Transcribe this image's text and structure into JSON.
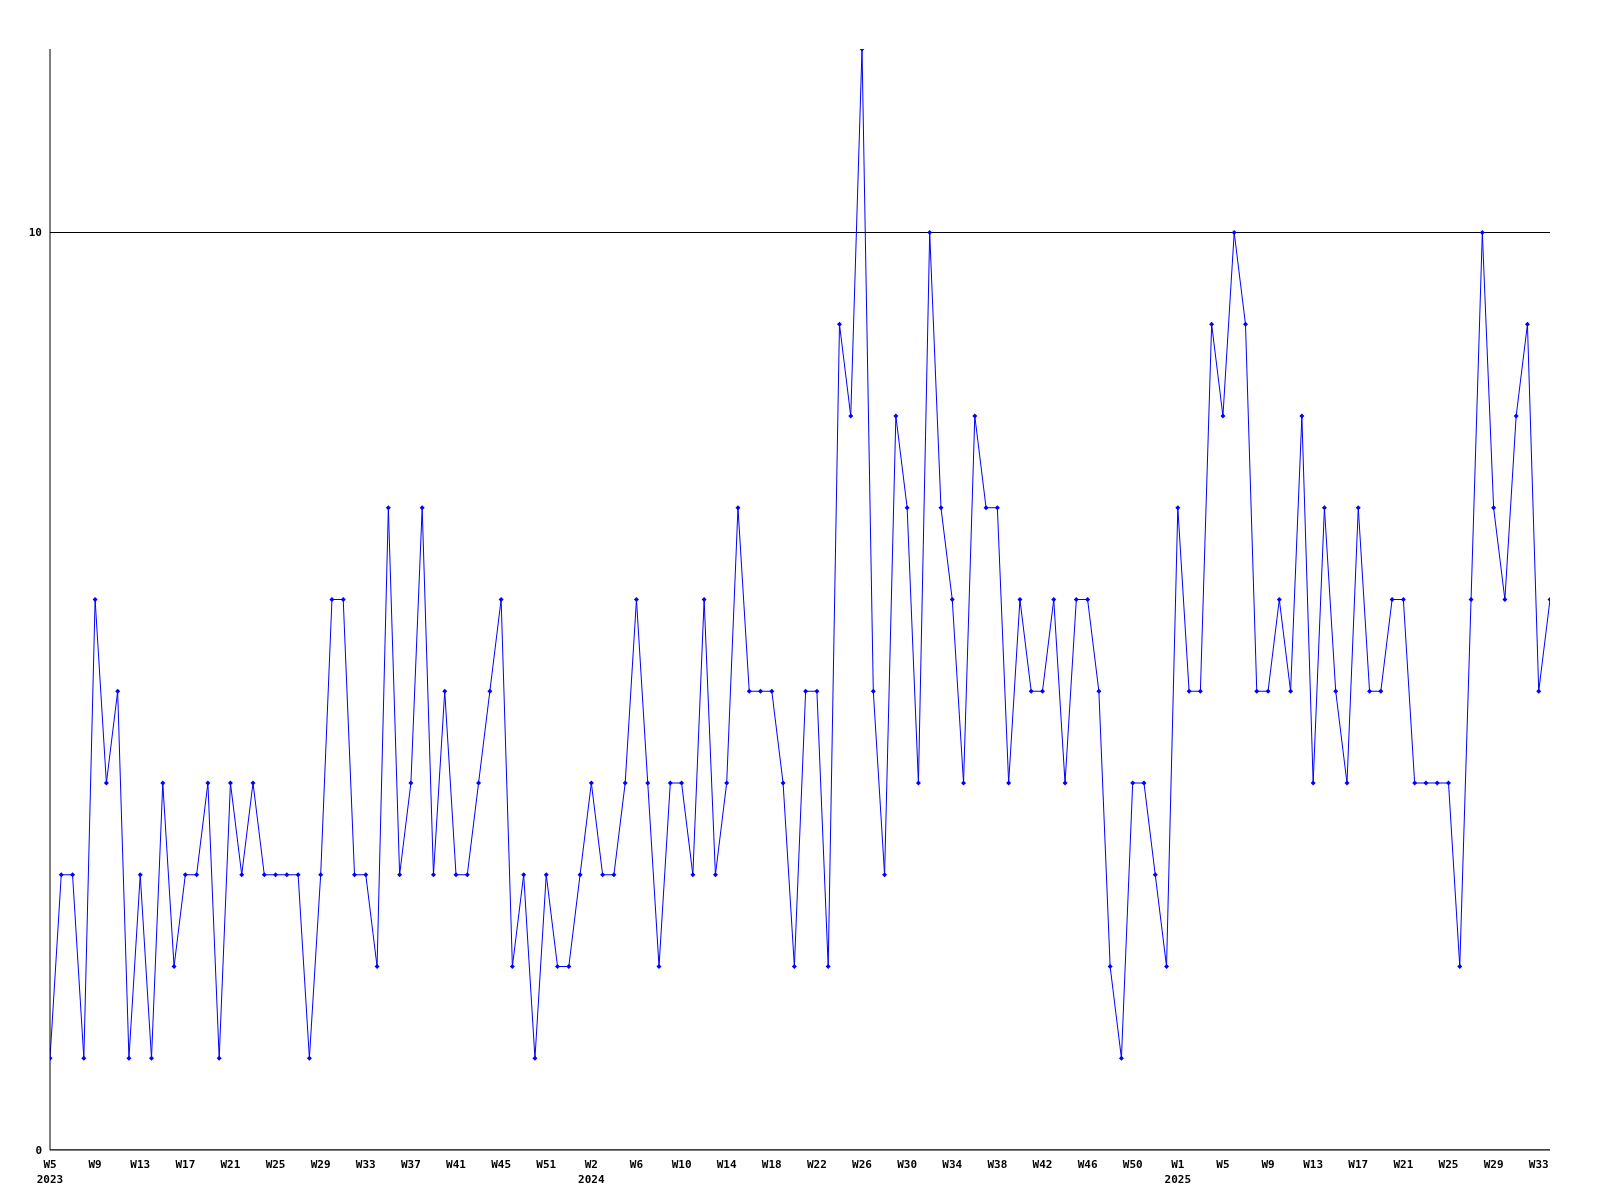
{
  "chart_data": {
    "type": "line",
    "categories": [
      "W5\n2023",
      null,
      null,
      null,
      "W9",
      null,
      null,
      null,
      "W13",
      null,
      null,
      null,
      "W17",
      null,
      null,
      null,
      "W21",
      null,
      null,
      null,
      "W25",
      null,
      null,
      null,
      "W29",
      null,
      null,
      null,
      "W33",
      null,
      null,
      null,
      "W37",
      null,
      null,
      null,
      "W41",
      null,
      null,
      null,
      "W45",
      null,
      null,
      null,
      "W51",
      null,
      null,
      null,
      "W2\n2024",
      null,
      null,
      null,
      "W6",
      null,
      null,
      null,
      "W10",
      null,
      null,
      null,
      "W14",
      null,
      null,
      null,
      "W18",
      null,
      null,
      null,
      "W22",
      null,
      null,
      null,
      "W26",
      null,
      null,
      null,
      "W30",
      null,
      null,
      null,
      "W34",
      null,
      null,
      null,
      "W38",
      null,
      null,
      null,
      "W42",
      null,
      null,
      null,
      "W46",
      null,
      null,
      null,
      "W50",
      null,
      null,
      null,
      "W1\n2025",
      null,
      null,
      null,
      "W5",
      null,
      null,
      null,
      "W9",
      null,
      null,
      null,
      "W13",
      null,
      null,
      null,
      "W17",
      null,
      null,
      null,
      "W21",
      null,
      null,
      null,
      "W25",
      null,
      null,
      null,
      "W29",
      null,
      null,
      null,
      "W33",
      null
    ],
    "series": [
      {
        "color": "#0000ff",
        "values": [
          1,
          3,
          3,
          1,
          6,
          4,
          5,
          1,
          3,
          1,
          4,
          2,
          3,
          3,
          4,
          1,
          4,
          3,
          4,
          3,
          3,
          3,
          3,
          1,
          3,
          6,
          6,
          3,
          3,
          2,
          7,
          3,
          4,
          7,
          3,
          5,
          3,
          3,
          4,
          5,
          6,
          2,
          3,
          1,
          3,
          2,
          2,
          3,
          4,
          3,
          3,
          4,
          6,
          4,
          2,
          4,
          4,
          3,
          6,
          3,
          4,
          7,
          5,
          5,
          5,
          4,
          2,
          5,
          5,
          2,
          9,
          8,
          12,
          5,
          3,
          8,
          7,
          4,
          10,
          7,
          6,
          4,
          8,
          7,
          7,
          4,
          6,
          5,
          5,
          6,
          4,
          6,
          6,
          5,
          2,
          1,
          4,
          4,
          3,
          2,
          7,
          5,
          5,
          9,
          8,
          10,
          9,
          5,
          5,
          6,
          5,
          8,
          4,
          7,
          5,
          4,
          7,
          5,
          5,
          6,
          6,
          4,
          4,
          4,
          4,
          2,
          6,
          10,
          7,
          6,
          8,
          9,
          5,
          6
        ]
      }
    ],
    "ylim": [
      0,
      12
    ],
    "yticks": [
      0,
      10
    ],
    "grid": "y",
    "marker": "diamond",
    "line_style": "solid"
  }
}
